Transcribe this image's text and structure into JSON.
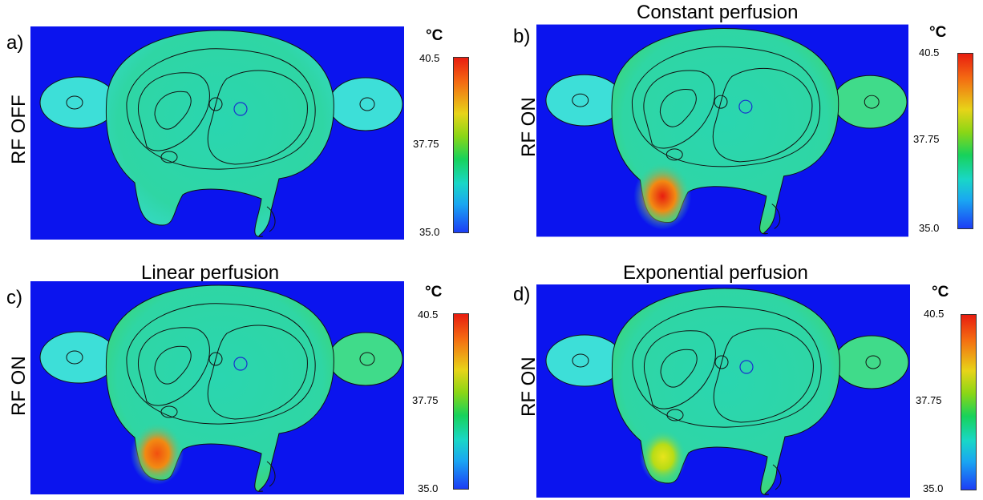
{
  "colorbar": {
    "unit": "°C",
    "max_label": "40.5",
    "mid_label": "37.75",
    "min_label": "35.0",
    "gradient_colors": [
      "#e81d10",
      "#f46b12",
      "#e7d418",
      "#8ad616",
      "#17d25b",
      "#19d7c7",
      "#1aa6f2",
      "#1c3df5"
    ]
  },
  "background_color": "#0b14ee",
  "panels": [
    {
      "letter": "a)",
      "title": "",
      "side_label": "RF OFF",
      "hotspot_level": 0.0,
      "hotspot_color": ""
    },
    {
      "letter": "b)",
      "title": "Constant perfusion",
      "side_label": "RF ON",
      "hotspot_level": 1.0,
      "hotspot_color": "#e81d10"
    },
    {
      "letter": "c)",
      "title": "Linear perfusion",
      "side_label": "RF ON",
      "hotspot_level": 0.8,
      "hotspot_color": "#f2500f"
    },
    {
      "letter": "d)",
      "title": "Exponential perfusion",
      "side_label": "RF ON",
      "hotspot_level": 0.5,
      "hotspot_color": "#e8e41a"
    }
  ]
}
